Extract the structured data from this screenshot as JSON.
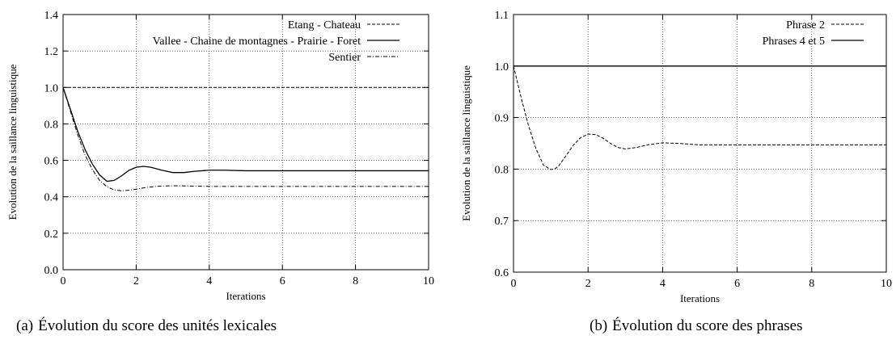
{
  "captions": {
    "a": {
      "label": "(a)",
      "text": "Évolution du score des unités lexicales"
    },
    "b": {
      "label": "(b)",
      "text": "Évolution du score des phrases"
    }
  },
  "chart_data": [
    {
      "type": "line",
      "xlabel": "Iterations",
      "ylabel": "Evolution de la saillance linguistique",
      "xlim": [
        0,
        10
      ],
      "ylim": [
        0,
        1.4
      ],
      "xticks": [
        0,
        2,
        4,
        6,
        8,
        10
      ],
      "yticks": [
        0.0,
        0.2,
        0.4,
        0.6,
        0.8,
        1.0,
        1.2,
        1.4
      ],
      "xtick_labels": [
        "0",
        "2",
        "4",
        "6",
        "8",
        "10"
      ],
      "ytick_labels": [
        "0.0",
        "0.2",
        "0.4",
        "0.6",
        "0.8",
        "1.0",
        "1.2",
        "1.4"
      ],
      "grid": true,
      "legend_position": "top-right",
      "series": [
        {
          "name": "Etang - Chateau",
          "style": "dashed",
          "x": [
            0,
            2,
            4,
            6,
            8,
            10
          ],
          "y": [
            1.0,
            1.0,
            1.0,
            1.0,
            1.0,
            1.0
          ]
        },
        {
          "name": "Vallee - Chaine de montagnes - Prairie - Foret",
          "style": "solid",
          "x": [
            0,
            0.2,
            0.4,
            0.6,
            0.8,
            1.0,
            1.2,
            1.4,
            1.6,
            1.8,
            2.0,
            2.2,
            2.4,
            2.7,
            3.0,
            3.3,
            3.6,
            4.0,
            4.4,
            5.0,
            6.0,
            7.0,
            8.0,
            9.0,
            10.0
          ],
          "y": [
            1.0,
            0.88,
            0.76,
            0.66,
            0.58,
            0.52,
            0.485,
            0.49,
            0.515,
            0.545,
            0.562,
            0.567,
            0.562,
            0.546,
            0.533,
            0.533,
            0.54,
            0.546,
            0.546,
            0.543,
            0.543,
            0.543,
            0.543,
            0.543,
            0.543
          ]
        },
        {
          "name": "Sentier",
          "style": "dash-dot",
          "x": [
            0,
            0.2,
            0.4,
            0.6,
            0.8,
            1.0,
            1.2,
            1.4,
            1.6,
            1.8,
            2.0,
            2.3,
            2.6,
            3.0,
            3.5,
            4.0,
            5.0,
            6.0,
            7.0,
            8.0,
            9.0,
            10.0
          ],
          "y": [
            1.0,
            0.87,
            0.74,
            0.63,
            0.55,
            0.49,
            0.455,
            0.438,
            0.433,
            0.436,
            0.442,
            0.452,
            0.458,
            0.461,
            0.459,
            0.457,
            0.457,
            0.457,
            0.457,
            0.457,
            0.457,
            0.457
          ]
        }
      ]
    },
    {
      "type": "line",
      "xlabel": "Iterations",
      "ylabel": "Evolution de la saillance linguistique",
      "xlim": [
        0,
        10
      ],
      "ylim": [
        0.6,
        1.1
      ],
      "xticks": [
        0,
        2,
        4,
        6,
        8,
        10
      ],
      "yticks": [
        0.6,
        0.7,
        0.8,
        0.9,
        1.0,
        1.1
      ],
      "xtick_labels": [
        "0",
        "2",
        "4",
        "6",
        "8",
        "10"
      ],
      "ytick_labels": [
        "0.6",
        "0.7",
        "0.8",
        "0.9",
        "1.0",
        "1.1"
      ],
      "grid": true,
      "legend_position": "top-right",
      "series": [
        {
          "name": "Phrase 2",
          "style": "dashed",
          "x": [
            0,
            0.2,
            0.4,
            0.6,
            0.8,
            1.0,
            1.1,
            1.2,
            1.4,
            1.6,
            1.8,
            2.0,
            2.2,
            2.4,
            2.6,
            2.8,
            3.0,
            3.3,
            3.6,
            4.0,
            4.4,
            5.0,
            6.0,
            7.0,
            8.0,
            9.0,
            10.0
          ],
          "y": [
            1.0,
            0.94,
            0.885,
            0.84,
            0.808,
            0.799,
            0.8,
            0.805,
            0.825,
            0.846,
            0.861,
            0.868,
            0.867,
            0.86,
            0.85,
            0.842,
            0.839,
            0.842,
            0.847,
            0.851,
            0.85,
            0.847,
            0.847,
            0.847,
            0.847,
            0.847,
            0.847
          ]
        },
        {
          "name": "Phrases 4 et 5",
          "style": "solid",
          "x": [
            0,
            2,
            4,
            6,
            8,
            10
          ],
          "y": [
            1.0,
            1.0,
            1.0,
            1.0,
            1.0,
            1.0
          ]
        }
      ]
    }
  ]
}
